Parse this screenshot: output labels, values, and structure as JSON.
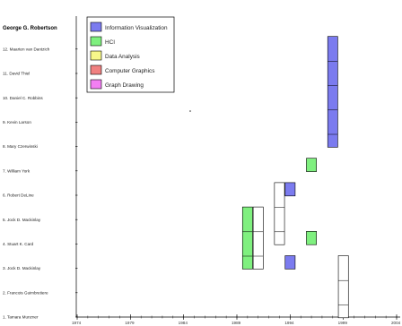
{
  "chart_data": {
    "type": "timeline",
    "title": "George G. Robertson",
    "rows": [
      "1. Tamara Munzner",
      "2. Francois Guimbretiere",
      "3. Jock D. Mackinlay",
      "4. Stuart K. Card",
      "5. Jock D. Mackinlay",
      "6. Robert DeLine",
      "7. William York",
      "8. Mary Czerwinski",
      "9. Kevin Larson",
      "10. Daniel C. Robbins",
      "11. David Thiel",
      "12. Maarten van Dantzich"
    ],
    "x_ticks": [
      1974,
      1979,
      1984,
      1989,
      1994,
      1999,
      2004
    ],
    "xlim": [
      1974,
      2004
    ],
    "legend": [
      {
        "name": "Information Visualization",
        "color": "#7b7bef"
      },
      {
        "name": "HCI",
        "color": "#7ff07f"
      },
      {
        "name": "Data Analysis",
        "color": "#f7f78a"
      },
      {
        "name": "Computer Graphics",
        "color": "#f08080"
      },
      {
        "name": "Graph Drawing",
        "color": "#f37ff3"
      }
    ],
    "legend_position": "top-left",
    "blocks": [
      {
        "year": 1990,
        "row_start": 3,
        "row_end": 5,
        "category": "HCI"
      },
      {
        "year": 1991,
        "row_start": 3,
        "row_end": 5,
        "category": "none"
      },
      {
        "year": 1993,
        "row_start": 4,
        "row_end": 6,
        "category": "none"
      },
      {
        "year": 1994,
        "row_start": 3,
        "row_end": 3,
        "category": "Information Visualization"
      },
      {
        "year": 1994,
        "row_start": 6,
        "row_end": 6,
        "category": "Information Visualization"
      },
      {
        "year": 1996,
        "row_start": 4,
        "row_end": 4,
        "category": "HCI"
      },
      {
        "year": 1996,
        "row_start": 7,
        "row_end": 7,
        "category": "HCI"
      },
      {
        "year": 1998,
        "row_start": 8,
        "row_end": 12,
        "category": "Information Visualization"
      },
      {
        "year": 1999,
        "row_start": 1,
        "row_end": 3,
        "category": "none"
      }
    ]
  }
}
